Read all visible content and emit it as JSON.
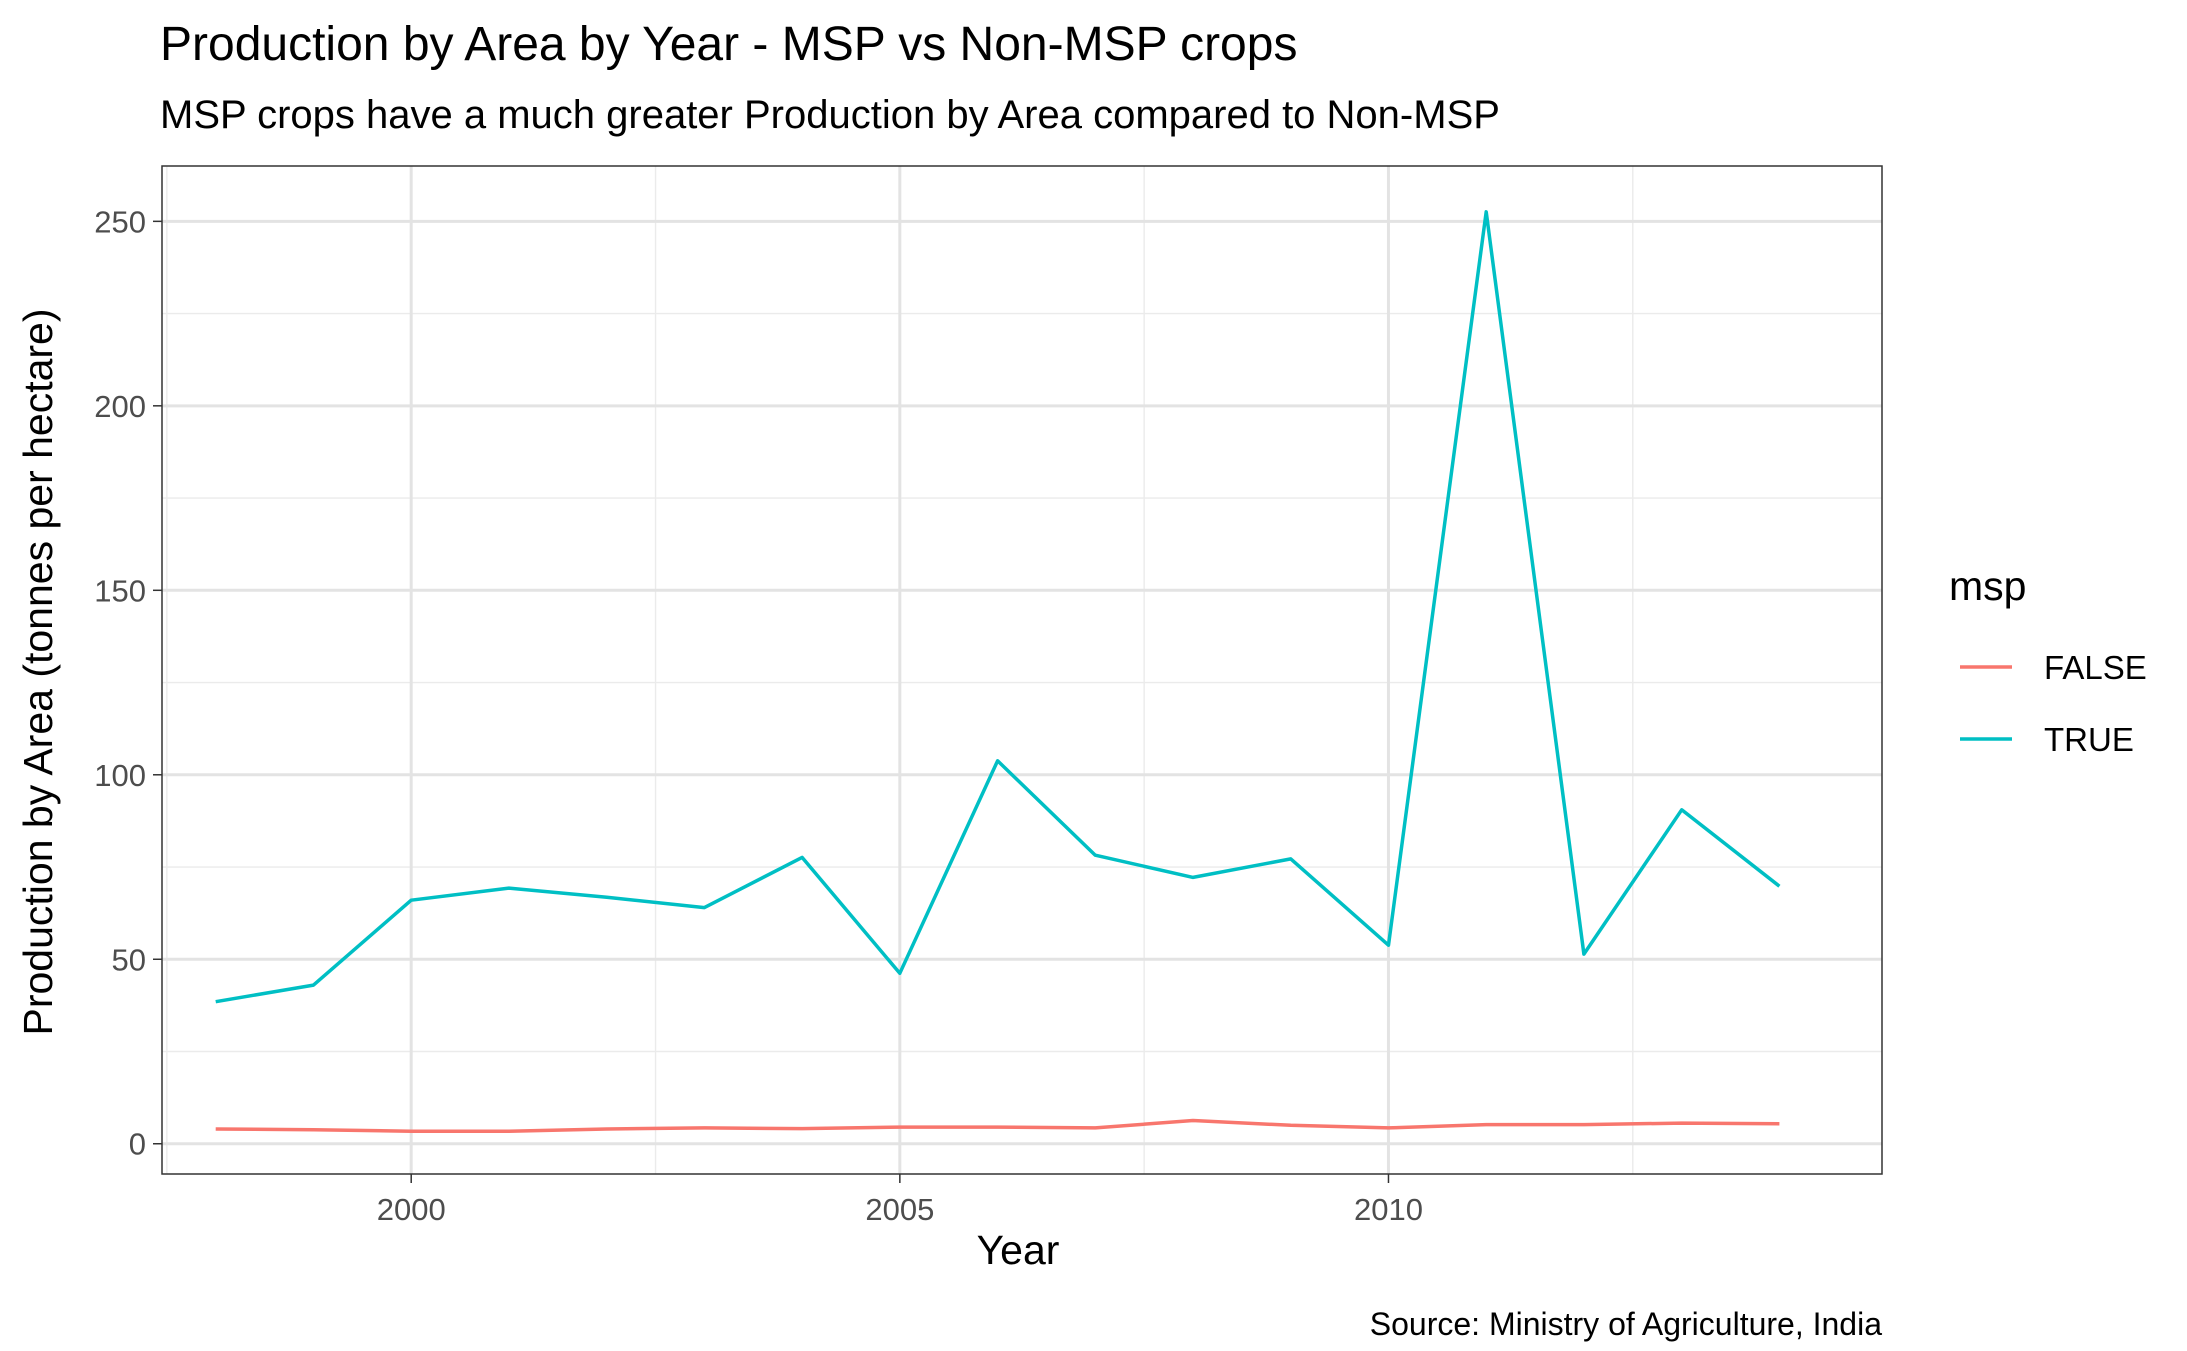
{
  "chart_data": {
    "type": "line",
    "title": "Production by Area by Year - MSP vs Non-MSP crops",
    "subtitle": "MSP crops have a much greater Production by Area compared to Non-MSP",
    "xlabel": "Year",
    "ylabel": "Production by Area (tonnes per hectare)",
    "caption": "Source: Ministry of Agriculture, India",
    "x_ticks": [
      "2000",
      "2005",
      "2010"
    ],
    "y_ticks": [
      "0",
      "50",
      "100",
      "150",
      "200",
      "250"
    ],
    "xlim": [
      1997.45,
      2015.05
    ],
    "ylim": [
      -8.2,
      265
    ],
    "grid": true,
    "legend": {
      "title": "msp",
      "position": "right",
      "entries": [
        "FALSE",
        "TRUE"
      ]
    },
    "x": [
      1998,
      1999,
      2000,
      2001,
      2002,
      2003,
      2004,
      2005,
      2006,
      2007,
      2008,
      2009,
      2010,
      2011,
      2012,
      2013,
      2014
    ],
    "series": [
      {
        "name": "FALSE",
        "color": "#F8766D",
        "values": [
          4.0,
          3.8,
          3.4,
          3.4,
          4.0,
          4.3,
          4.1,
          4.5,
          4.5,
          4.3,
          6.3,
          5.0,
          4.3,
          5.2,
          5.2,
          5.6,
          5.4
        ]
      },
      {
        "name": "TRUE",
        "color": "#00BFC4",
        "values": [
          38.5,
          43.0,
          66.0,
          69.3,
          66.8,
          64.0,
          77.6,
          46.2,
          103.8,
          78.2,
          72.2,
          77.2,
          53.8,
          252.6,
          51.4,
          90.5,
          69.8
        ]
      }
    ]
  }
}
